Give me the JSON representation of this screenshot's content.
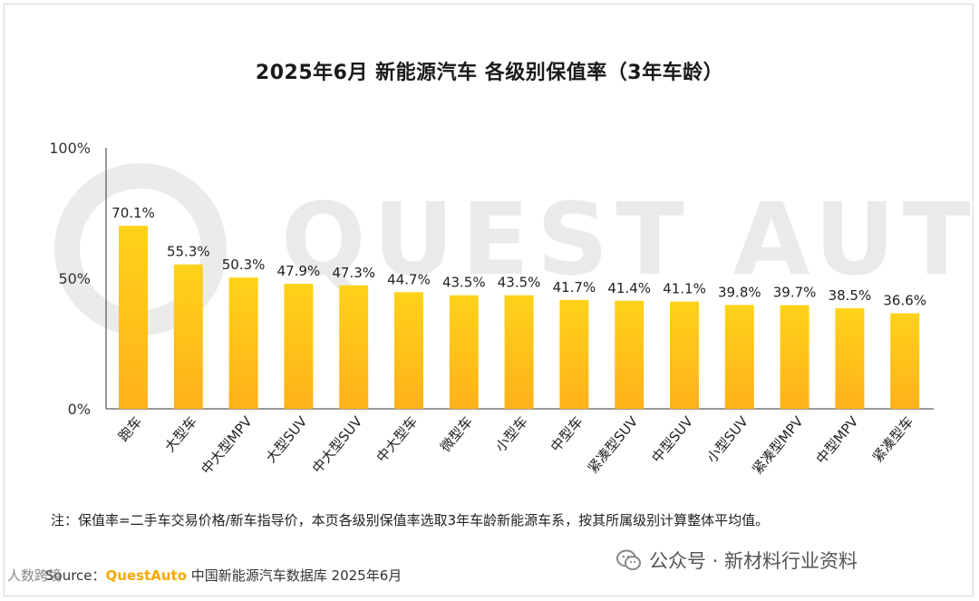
{
  "title": "2025年6月 新能源汽车 各级别保值率（3年车龄）",
  "watermark": "QUEST AUTO",
  "note": "注：保值率=二手车交易价格/新车指导价，本页各级别保值率选取3年车龄新能源车系，按其所属级别计算整体平均值。",
  "source": {
    "label": "Source：",
    "brand": "QuestAuto",
    "text": "中国新能源汽车数据库 2025年6月"
  },
  "wechat_label": "公众号 · 新材料行业资料",
  "corner_label": "人数跨境",
  "colors": {
    "bar_top": "#ffd21a",
    "bar_bottom": "#ffb21a",
    "axis": "#333333"
  },
  "chart_data": {
    "type": "bar",
    "title": "2025年6月 新能源汽车 各级别保值率（3年车龄）",
    "categories": [
      "跑车",
      "大型车",
      "中大型MPV",
      "大型SUV",
      "中大型SUV",
      "中大型车",
      "微型车",
      "小型车",
      "中型车",
      "紧凑型SUV",
      "中型SUV",
      "小型SUV",
      "紧凑型MPV",
      "中型MPV",
      "紧凑型车"
    ],
    "values": [
      70.1,
      55.3,
      50.3,
      47.9,
      47.3,
      44.7,
      43.5,
      43.5,
      41.7,
      41.4,
      41.1,
      39.8,
      39.7,
      38.5,
      36.6
    ],
    "value_labels": [
      "70.1%",
      "55.3%",
      "50.3%",
      "47.9%",
      "47.3%",
      "44.7%",
      "43.5%",
      "43.5%",
      "41.7%",
      "41.4%",
      "41.1%",
      "39.8%",
      "39.7%",
      "38.5%",
      "36.6%"
    ],
    "yticks": [
      "0%",
      "50%",
      "100%"
    ],
    "ylim": [
      0,
      100
    ],
    "grid": false,
    "xlabel": "",
    "ylabel": ""
  }
}
